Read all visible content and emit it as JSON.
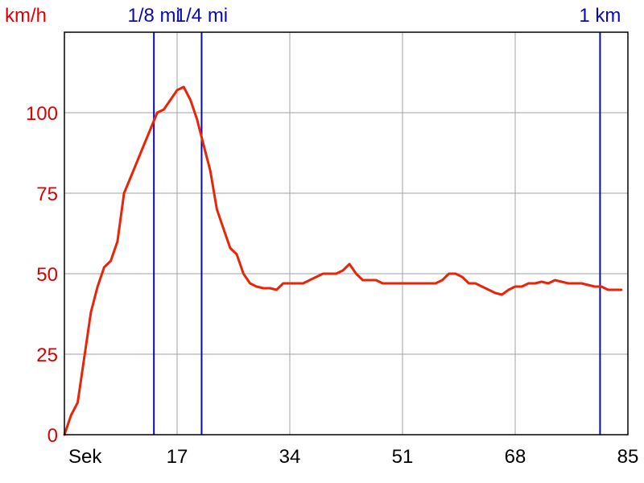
{
  "chart_data": {
    "type": "line",
    "ylabel": "km/h",
    "xlabel": "Sek",
    "xlim": [
      0,
      85
    ],
    "ylim": [
      0,
      125
    ],
    "x_ticks": [
      17,
      34,
      51,
      68,
      85
    ],
    "y_ticks": [
      0,
      25,
      50,
      75,
      100
    ],
    "grid": true,
    "colors": {
      "line": "#e8250a",
      "marker": "#0a0ab4",
      "ytext": "#dd0000",
      "grid": "#a0a0a0"
    },
    "markers": [
      {
        "label": "1/8 mi",
        "x": 13.5
      },
      {
        "label": "1/4 mi",
        "x": 20.7
      },
      {
        "label": "1 km",
        "x": 80.8
      }
    ],
    "series": [
      {
        "x": [
          0,
          1,
          2,
          3,
          4,
          5,
          6,
          7,
          8,
          9,
          10,
          11,
          12,
          13,
          14,
          15,
          16,
          17,
          18,
          19,
          20,
          21,
          22,
          23,
          24,
          25,
          26,
          27,
          28,
          29,
          30,
          31,
          32,
          33,
          34,
          35,
          36,
          37,
          38,
          39,
          40,
          41,
          42,
          43,
          44,
          45,
          46,
          47,
          48,
          49,
          50,
          51,
          52,
          53,
          54,
          55,
          56,
          57,
          58,
          59,
          60,
          61,
          62,
          63,
          64,
          65,
          66,
          67,
          68,
          69,
          70,
          71,
          72,
          73,
          74,
          75,
          76,
          77,
          78,
          79,
          80,
          81,
          82,
          83,
          84
        ],
        "values": [
          0,
          6,
          10,
          24,
          38,
          46,
          52,
          54,
          60,
          75,
          80,
          85,
          90,
          95,
          100,
          101,
          104,
          107,
          108,
          104,
          98,
          90,
          82,
          70,
          64,
          58,
          56,
          50,
          47,
          46,
          45.5,
          45.5,
          45,
          47,
          47,
          47,
          47,
          48,
          49,
          50,
          50,
          50,
          51,
          53,
          50,
          48,
          48,
          48,
          47,
          47,
          47,
          47,
          47,
          47,
          47,
          47,
          47,
          48,
          50,
          50,
          49,
          47,
          47,
          46,
          45,
          44,
          43.5,
          45,
          46,
          46,
          47,
          47,
          47.5,
          47,
          48,
          47.5,
          47,
          47,
          47,
          46.5,
          46,
          46,
          45,
          45,
          45
        ]
      }
    ]
  }
}
